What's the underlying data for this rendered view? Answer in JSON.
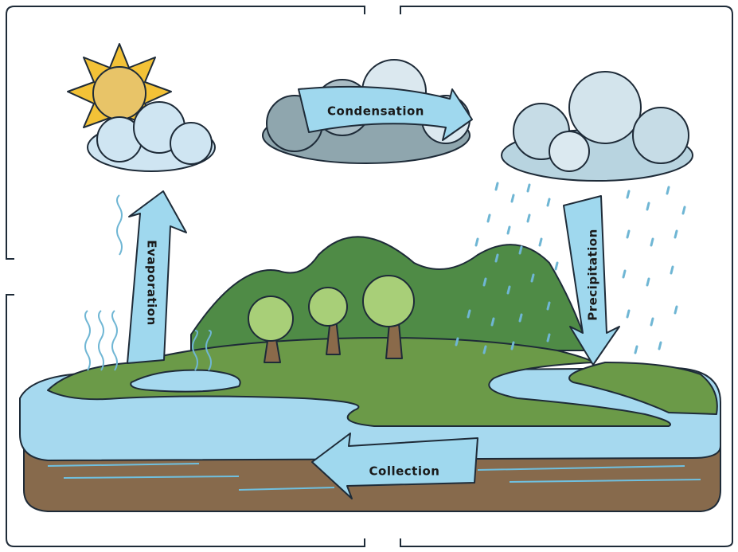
{
  "nodes": [
    {
      "label": "Condensation"
    },
    {
      "label": "Evaporation"
    },
    {
      "label": "Precipitation"
    },
    {
      "label": "Collection"
    }
  ]
}
